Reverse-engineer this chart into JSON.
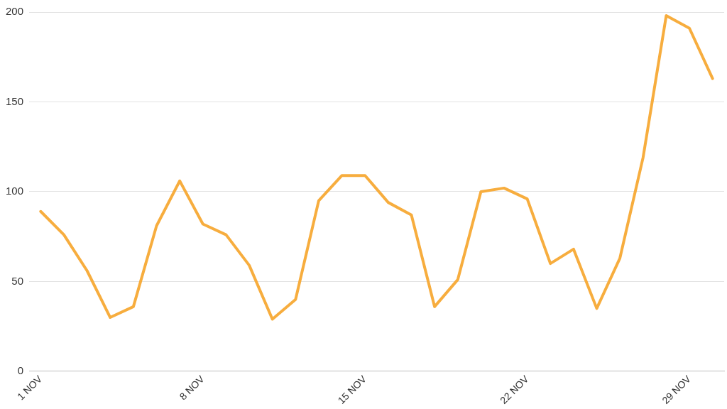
{
  "chart_data": {
    "type": "line",
    "categories": [
      "1 NOV",
      null,
      null,
      null,
      null,
      null,
      null,
      "8 NOV",
      null,
      null,
      null,
      null,
      null,
      null,
      "15 NOV",
      null,
      null,
      null,
      null,
      null,
      null,
      "22 NOV",
      null,
      null,
      null,
      null,
      null,
      null,
      "29 NOV",
      null
    ],
    "series": [
      {
        "color": "#f7ad3e",
        "values": [
          89,
          76,
          56,
          30,
          36,
          81,
          106,
          82,
          76,
          59,
          29,
          40,
          95,
          109,
          109,
          94,
          87,
          36,
          51,
          100,
          102,
          96,
          60,
          68,
          35,
          63,
          119,
          198,
          191,
          163
        ]
      }
    ],
    "ylim": [
      0,
      200
    ],
    "yticks": [
      0,
      50,
      100,
      150,
      200
    ],
    "grid": "y",
    "legend": false,
    "marker": "none",
    "line_style": "solid"
  }
}
